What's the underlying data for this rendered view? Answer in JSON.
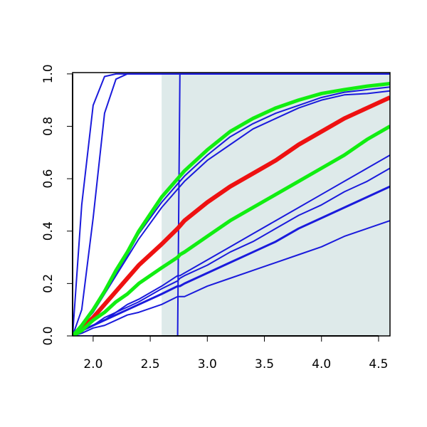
{
  "chart_data": {
    "type": "line",
    "x": [
      1.82,
      1.9,
      2.0,
      2.1,
      2.2,
      2.3,
      2.4,
      2.6,
      2.74,
      2.76,
      2.8,
      3.0,
      3.2,
      3.4,
      3.6,
      3.8,
      4.0,
      4.2,
      4.4,
      4.6
    ],
    "series": [
      {
        "color": "#1a1adc",
        "width": 2,
        "values": [
          0,
          0.5,
          0.88,
          0.99,
          1,
          1,
          1,
          1,
          1,
          1,
          1,
          1,
          1,
          1,
          1,
          1,
          1,
          1,
          1,
          1
        ]
      },
      {
        "color": "#1a1adc",
        "width": 2,
        "values": [
          0,
          0.1,
          0.45,
          0.85,
          0.98,
          1,
          1,
          1,
          1,
          1,
          1,
          1,
          1,
          1,
          1,
          1,
          1,
          1,
          1,
          1
        ]
      },
      {
        "color": "#1a1adc",
        "width": 2,
        "values": [
          0,
          0,
          0,
          0,
          0,
          0,
          0,
          0,
          0,
          1,
          1,
          1,
          1,
          1,
          1,
          1,
          1,
          1,
          1,
          1
        ]
      },
      {
        "color": "#1a1adc",
        "width": 2,
        "values": [
          0,
          0.04,
          0.1,
          0.17,
          0.24,
          0.31,
          0.39,
          0.51,
          0.58,
          0.59,
          0.61,
          0.69,
          0.76,
          0.81,
          0.85,
          0.88,
          0.91,
          0.93,
          0.94,
          0.95
        ]
      },
      {
        "color": "#1a1adc",
        "width": 2,
        "values": [
          0,
          0.04,
          0.09,
          0.16,
          0.23,
          0.3,
          0.37,
          0.49,
          0.56,
          0.57,
          0.59,
          0.67,
          0.73,
          0.79,
          0.83,
          0.87,
          0.9,
          0.92,
          0.925,
          0.935
        ]
      },
      {
        "color": "#1a1adc",
        "width": 2,
        "values": [
          0,
          0.02,
          0.04,
          0.07,
          0.09,
          0.12,
          0.14,
          0.19,
          0.23,
          0.23,
          0.24,
          0.29,
          0.34,
          0.39,
          0.44,
          0.49,
          0.54,
          0.59,
          0.64,
          0.69
        ]
      },
      {
        "color": "#1a1adc",
        "width": 2,
        "values": [
          0,
          0.02,
          0.04,
          0.06,
          0.09,
          0.11,
          0.13,
          0.18,
          0.21,
          0.22,
          0.23,
          0.27,
          0.32,
          0.36,
          0.41,
          0.46,
          0.5,
          0.55,
          0.59,
          0.64
        ]
      },
      {
        "color": "#1a1adc",
        "width": 3,
        "values": [
          0,
          0.02,
          0.04,
          0.06,
          0.08,
          0.1,
          0.12,
          0.16,
          0.19,
          0.19,
          0.2,
          0.24,
          0.28,
          0.32,
          0.36,
          0.41,
          0.45,
          0.49,
          0.53,
          0.57
        ]
      },
      {
        "color": "#1a1adc",
        "width": 2,
        "values": [
          0,
          0.01,
          0.03,
          0.04,
          0.06,
          0.08,
          0.09,
          0.12,
          0.15,
          0.15,
          0.15,
          0.19,
          0.22,
          0.25,
          0.28,
          0.31,
          0.34,
          0.38,
          0.41,
          0.44
        ]
      },
      {
        "color": "#ee1111",
        "width": 6,
        "values": [
          0,
          0.03,
          0.07,
          0.12,
          0.17,
          0.22,
          0.27,
          0.35,
          0.41,
          0.42,
          0.44,
          0.51,
          0.57,
          0.62,
          0.67,
          0.73,
          0.78,
          0.83,
          0.87,
          0.91
        ]
      },
      {
        "color": "#11ee11",
        "width": 5,
        "values": [
          0,
          0.02,
          0.06,
          0.09,
          0.13,
          0.16,
          0.2,
          0.26,
          0.3,
          0.31,
          0.32,
          0.38,
          0.44,
          0.49,
          0.54,
          0.59,
          0.64,
          0.69,
          0.75,
          0.8
        ]
      },
      {
        "color": "#11ee11",
        "width": 5,
        "values": [
          0,
          0.04,
          0.1,
          0.17,
          0.25,
          0.32,
          0.4,
          0.53,
          0.6,
          0.61,
          0.63,
          0.71,
          0.78,
          0.83,
          0.87,
          0.9,
          0.925,
          0.94,
          0.953,
          0.963
        ]
      }
    ],
    "shaded_xrange": [
      2.6,
      4.6
    ],
    "shade_color": "#deeaea",
    "xlim": [
      1.82,
      4.6
    ],
    "ylim": [
      0,
      1.005
    ],
    "xticks": [
      {
        "value": 2,
        "label": "2.0"
      },
      2.5,
      {
        "value": 3,
        "label": "3.0"
      },
      3.5,
      {
        "value": 4,
        "label": "4.0"
      },
      4.5
    ],
    "yticks": [
      {
        "value": 0,
        "label": "0.0"
      },
      0.2,
      0.4,
      0.6,
      0.8,
      {
        "value": 1,
        "label": "1.0"
      }
    ]
  }
}
